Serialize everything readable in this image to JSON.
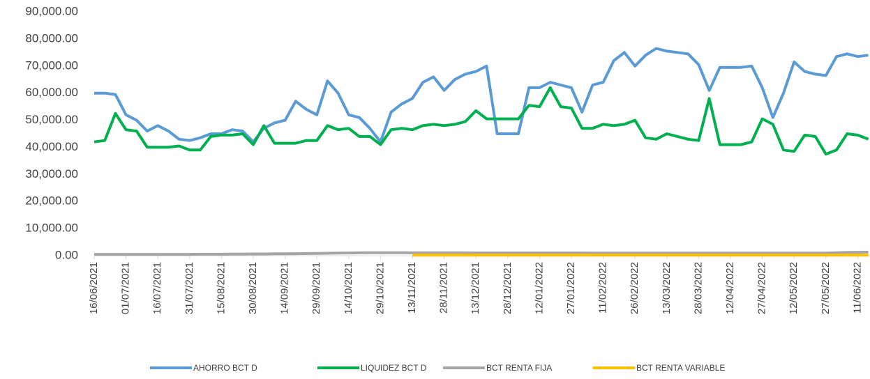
{
  "chart_data": {
    "type": "line",
    "categories": [
      "16/06/2021",
      null,
      null,
      "01/07/2021",
      null,
      null,
      "16/07/2021",
      null,
      null,
      "31/07/2021",
      null,
      null,
      "15/08/2021",
      null,
      null,
      "30/08/2021",
      null,
      null,
      "14/09/2021",
      null,
      null,
      "29/09/2021",
      null,
      null,
      "14/10/2021",
      null,
      null,
      "29/10/2021",
      null,
      null,
      "13/11/2021",
      null,
      null,
      "28/11/2021",
      null,
      null,
      "13/12/2021",
      null,
      null,
      "28/12/2021",
      null,
      null,
      "12/01/2022",
      null,
      null,
      "27/01/2022",
      null,
      null,
      "11/02/2022",
      null,
      null,
      "26/02/2022",
      null,
      null,
      "13/03/2022",
      null,
      null,
      "28/03/2022",
      null,
      null,
      "12/04/2022",
      null,
      null,
      "27/04/2022",
      null,
      null,
      "12/05/2022",
      null,
      null,
      "27/05/2022",
      null,
      null,
      "11/06/2022",
      null
    ],
    "series": [
      {
        "name": "AHORRO BCT D",
        "color": "#5b9bd5",
        "values": [
          60000,
          60000,
          59500,
          52000,
          50000,
          46000,
          48000,
          46000,
          43000,
          42500,
          43500,
          45000,
          45000,
          46500,
          46000,
          42000,
          47000,
          49000,
          50000,
          57000,
          54000,
          52000,
          64500,
          60000,
          52000,
          51000,
          47000,
          42000,
          53000,
          56000,
          58000,
          64000,
          66000,
          61000,
          65000,
          67000,
          68000,
          70000,
          45000,
          45000,
          45000,
          62000,
          62000,
          64000,
          63000,
          62000,
          53000,
          63000,
          64000,
          72000,
          75000,
          70000,
          74000,
          76500,
          75500,
          75000,
          74500,
          70500,
          61000,
          69500,
          69500,
          69500,
          70000,
          62000,
          51000,
          60000,
          71500,
          68000,
          67000,
          66500,
          73500,
          74500,
          73500,
          74000
        ]
      },
      {
        "name": "LIQUIDEZ BCT D",
        "color": "#00b050",
        "values": [
          42000,
          42500,
          52500,
          46500,
          46000,
          40000,
          40000,
          40000,
          40500,
          39000,
          39000,
          44000,
          44500,
          44500,
          45000,
          41000,
          48000,
          41500,
          41500,
          41500,
          42500,
          42500,
          48000,
          46500,
          47000,
          44000,
          44000,
          41000,
          46500,
          47000,
          46500,
          48000,
          48500,
          48000,
          48500,
          49500,
          53500,
          50500,
          50500,
          50500,
          50500,
          55500,
          55000,
          62000,
          55000,
          54500,
          47000,
          47000,
          48500,
          48000,
          48500,
          50000,
          43500,
          43000,
          45000,
          44000,
          43000,
          42500,
          58000,
          41000,
          41000,
          41000,
          42000,
          50500,
          48500,
          39000,
          38500,
          44500,
          44000,
          37500,
          39000,
          45000,
          44500,
          43000
        ]
      },
      {
        "name": "BCT RENTA FIJA",
        "color": "#a5a5a5",
        "values": [
          500,
          500,
          500,
          500,
          500,
          500,
          500,
          500,
          500,
          500,
          550,
          550,
          550,
          600,
          600,
          650,
          650,
          700,
          700,
          750,
          800,
          850,
          900,
          950,
          1000,
          1050,
          1100,
          1100,
          1100,
          1100,
          1050,
          1050,
          1050,
          1050,
          1050,
          1050,
          1000,
          1000,
          1000,
          1000,
          1000,
          1000,
          1000,
          1000,
          1000,
          1000,
          1000,
          950,
          950,
          950,
          950,
          950,
          950,
          950,
          950,
          950,
          950,
          950,
          950,
          950,
          950,
          950,
          950,
          950,
          950,
          950,
          950,
          950,
          950,
          950,
          1100,
          1200,
          1250,
          1300
        ]
      },
      {
        "name": "BCT RENTA VARIABLE",
        "color": "#ffc000",
        "values": [
          null,
          null,
          null,
          null,
          null,
          null,
          null,
          null,
          null,
          null,
          null,
          null,
          null,
          null,
          null,
          null,
          null,
          null,
          null,
          null,
          null,
          null,
          null,
          null,
          null,
          null,
          null,
          null,
          null,
          null,
          200,
          200,
          200,
          200,
          200,
          200,
          200,
          200,
          200,
          200,
          200,
          200,
          200,
          200,
          200,
          200,
          200,
          200,
          200,
          200,
          200,
          200,
          200,
          200,
          200,
          200,
          200,
          200,
          200,
          200,
          200,
          200,
          200,
          200,
          200,
          200,
          200,
          200,
          200,
          200,
          200,
          200,
          200,
          200
        ]
      }
    ],
    "ylim": [
      0,
      90000
    ],
    "yticks": [
      {
        "value": 0,
        "label": "0.00"
      },
      {
        "value": 10000,
        "label": "10,000.00"
      },
      {
        "value": 20000,
        "label": "20,000.00"
      },
      {
        "value": 30000,
        "label": "30,000.00"
      },
      {
        "value": 40000,
        "label": "40,000.00"
      },
      {
        "value": 50000,
        "label": "50,000.00"
      },
      {
        "value": 60000,
        "label": "60,000.00"
      },
      {
        "value": 70000,
        "label": "70,000.00"
      },
      {
        "value": 80000,
        "label": "80,000.00"
      },
      {
        "value": 90000,
        "label": "90,000.00"
      }
    ],
    "grid": false
  }
}
